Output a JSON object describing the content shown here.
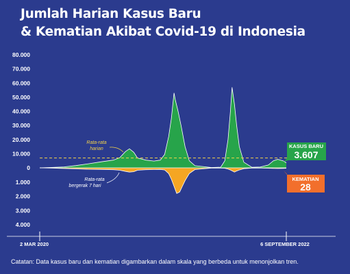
{
  "title_line1": "Jumlah Harian Kasus Baru",
  "title_line2": "& Kematian Akibat Covid-19 di Indonesia",
  "footnote": "Catatan: Data kasus baru dan kematian digambarkan dalam skala yang berbeda untuk menonjolkan tren.",
  "colors": {
    "background": "#2b3b8e",
    "cases": "#27a44a",
    "deaths": "#f5a623",
    "deaths_badge": "#f26f2c",
    "avg_line": "#f3d34a",
    "text": "#ffffff"
  },
  "chart_data": {
    "type": "area",
    "x_labels": {
      "start": "2 MAR 2020",
      "end": "6 SEPTEMBER 2022"
    },
    "date_range": [
      "2020-03-02",
      "2022-09-06"
    ],
    "cases_axis": {
      "ticks": [
        "80.000",
        "70.000",
        "60.000",
        "50.000",
        "40.000",
        "30.000",
        "20.000",
        "10.000",
        "0"
      ],
      "ylim": [
        0,
        80000
      ]
    },
    "deaths_axis": {
      "ticks": [
        "1.000",
        "2.000",
        "3.000",
        "4.000"
      ],
      "ylim": [
        0,
        4000
      ],
      "direction": "down"
    },
    "series": [
      {
        "name": "Kasus Baru",
        "label": "KASUS BARU",
        "latest": "3.607",
        "points": [
          [
            "2020-03-02",
            0
          ],
          [
            "2020-04-15",
            300
          ],
          [
            "2020-06-01",
            700
          ],
          [
            "2020-07-15",
            1600
          ],
          [
            "2020-09-01",
            2900
          ],
          [
            "2020-10-15",
            4200
          ],
          [
            "2020-12-01",
            5500
          ],
          [
            "2020-12-25",
            7200
          ],
          [
            "2021-01-15",
            11500
          ],
          [
            "2021-01-30",
            13500
          ],
          [
            "2021-02-15",
            11000
          ],
          [
            "2021-03-01",
            7000
          ],
          [
            "2021-04-01",
            5500
          ],
          [
            "2021-05-01",
            4800
          ],
          [
            "2021-05-25",
            5500
          ],
          [
            "2021-06-10",
            9500
          ],
          [
            "2021-06-25",
            22000
          ],
          [
            "2021-07-05",
            35000
          ],
          [
            "2021-07-15",
            53000
          ],
          [
            "2021-07-20",
            48000
          ],
          [
            "2021-07-30",
            40000
          ],
          [
            "2021-08-10",
            30000
          ],
          [
            "2021-08-25",
            15000
          ],
          [
            "2021-09-10",
            5000
          ],
          [
            "2021-10-01",
            1500
          ],
          [
            "2021-12-01",
            250
          ],
          [
            "2022-01-05",
            500
          ],
          [
            "2022-01-20",
            5000
          ],
          [
            "2022-02-01",
            20000
          ],
          [
            "2022-02-10",
            40000
          ],
          [
            "2022-02-16",
            57000
          ],
          [
            "2022-02-25",
            45000
          ],
          [
            "2022-03-05",
            30000
          ],
          [
            "2022-03-15",
            15000
          ],
          [
            "2022-04-01",
            4000
          ],
          [
            "2022-05-01",
            400
          ],
          [
            "2022-06-01",
            600
          ],
          [
            "2022-07-01",
            2000
          ],
          [
            "2022-07-20",
            5000
          ],
          [
            "2022-08-05",
            6000
          ],
          [
            "2022-08-25",
            5000
          ],
          [
            "2022-09-06",
            3607
          ]
        ]
      },
      {
        "name": "Kematian",
        "label": "KEMATIAN",
        "latest": "28",
        "points": [
          [
            "2020-03-02",
            0
          ],
          [
            "2020-04-15",
            20
          ],
          [
            "2020-06-01",
            50
          ],
          [
            "2020-07-15",
            70
          ],
          [
            "2020-09-01",
            100
          ],
          [
            "2020-10-15",
            110
          ],
          [
            "2020-12-01",
            130
          ],
          [
            "2020-12-25",
            170
          ],
          [
            "2021-01-15",
            250
          ],
          [
            "2021-01-30",
            300
          ],
          [
            "2021-02-15",
            270
          ],
          [
            "2021-03-01",
            170
          ],
          [
            "2021-04-01",
            130
          ],
          [
            "2021-05-01",
            120
          ],
          [
            "2021-05-25",
            110
          ],
          [
            "2021-06-10",
            150
          ],
          [
            "2021-06-25",
            400
          ],
          [
            "2021-07-05",
            800
          ],
          [
            "2021-07-15",
            1300
          ],
          [
            "2021-07-25",
            1800
          ],
          [
            "2021-08-05",
            1700
          ],
          [
            "2021-08-15",
            1300
          ],
          [
            "2021-08-25",
            900
          ],
          [
            "2021-09-10",
            400
          ],
          [
            "2021-10-01",
            120
          ],
          [
            "2021-12-01",
            20
          ],
          [
            "2022-01-05",
            15
          ],
          [
            "2022-01-20",
            30
          ],
          [
            "2022-02-01",
            80
          ],
          [
            "2022-02-10",
            150
          ],
          [
            "2022-02-25",
            300
          ],
          [
            "2022-03-05",
            220
          ],
          [
            "2022-03-15",
            150
          ],
          [
            "2022-04-01",
            60
          ],
          [
            "2022-05-01",
            20
          ],
          [
            "2022-06-01",
            15
          ],
          [
            "2022-07-01",
            30
          ],
          [
            "2022-07-20",
            45
          ],
          [
            "2022-08-05",
            50
          ],
          [
            "2022-08-25",
            40
          ],
          [
            "2022-09-06",
            28
          ]
        ]
      }
    ],
    "reference_line": {
      "value": 7000,
      "label_lines": [
        "Rata-rata",
        "harian"
      ]
    },
    "annotation": {
      "label_lines": [
        "Rata-rata",
        "bergerak 7 hari"
      ]
    }
  }
}
